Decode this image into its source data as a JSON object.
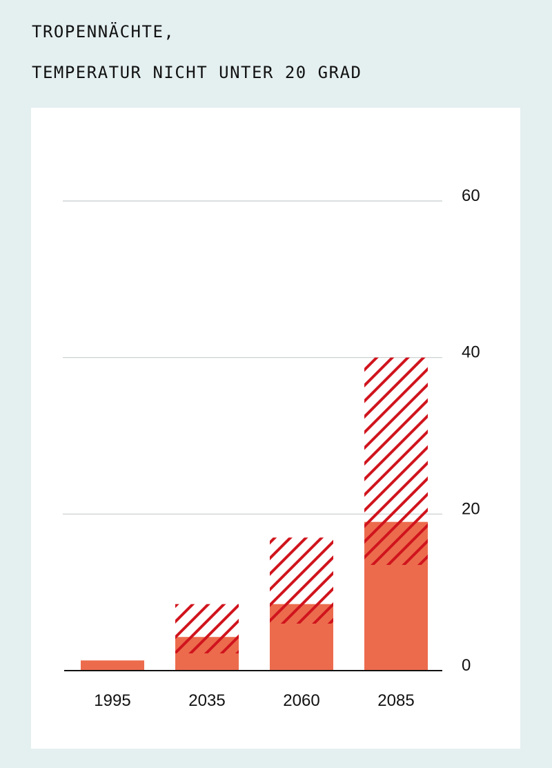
{
  "chart_data": {
    "type": "bar",
    "title": "TROPENNÄCHTE,",
    "subtitle": "TEMPERATUR NICHT UNTER 20 GRAD",
    "categories": [
      "1995",
      "2035",
      "2060",
      "2085"
    ],
    "series": [
      {
        "name": "",
        "kind": "solid",
        "values": [
          1.3,
          4.3,
          8.5,
          19.0
        ]
      },
      {
        "name": "",
        "kind": "hatched-range",
        "low": [
          null,
          2.2,
          6.0,
          13.5
        ],
        "high": [
          null,
          8.5,
          17.0,
          40.0
        ]
      }
    ],
    "ylim": [
      0,
      60
    ],
    "yticks": [
      "0",
      "20",
      "40",
      "60"
    ],
    "ytick_values": [
      0,
      20,
      40,
      60
    ],
    "xlabel": "",
    "ylabel": "",
    "grid": true,
    "colors": {
      "bar": "#ec6b4d",
      "hatch": "#d0141d",
      "grid": "#c8cccc",
      "axis": "#111111"
    }
  }
}
